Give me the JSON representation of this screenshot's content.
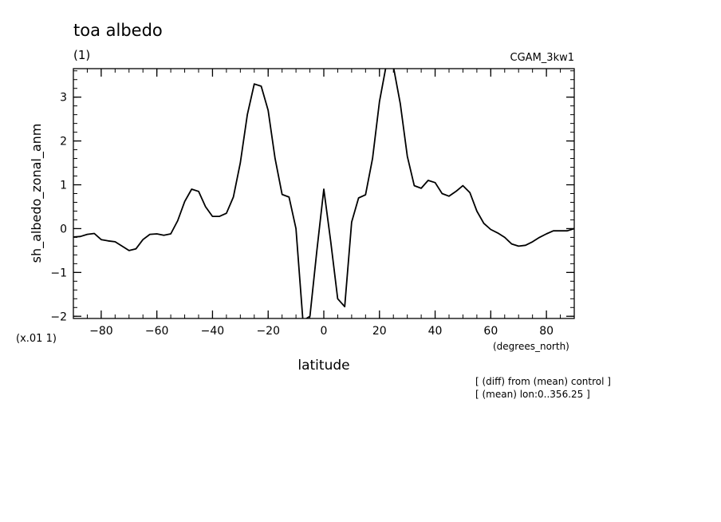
{
  "chart_data": {
    "type": "line",
    "title": "toa albedo",
    "subtitle": "(1)",
    "case_label": "CGAM_3kw1",
    "xlabel": "latitude",
    "xunits": "(degrees_north)",
    "ylabel": "sh_albedo_zonal_anm",
    "yscale_note": "(x.01 1)",
    "notes": [
      "[ (diff) from (mean) control ]",
      "[ (mean) lon:0..356.25 ]"
    ],
    "xlim": [
      -90,
      90
    ],
    "ylim": [
      -2.05,
      3.65
    ],
    "xticks": [
      -80,
      -60,
      -40,
      -20,
      0,
      20,
      40,
      60,
      80
    ],
    "xtick_labels": [
      "−80",
      "−60",
      "−40",
      "−20",
      "0",
      "20",
      "40",
      "60",
      "80"
    ],
    "yticks": [
      -2,
      -1,
      0,
      1,
      2,
      3
    ],
    "ytick_labels": [
      "−2",
      "−1",
      "0",
      "1",
      "2",
      "3"
    ],
    "grid": false,
    "line_color": "#000000",
    "x": [
      -90,
      -87.5,
      -85,
      -82.5,
      -80,
      -77.5,
      -75,
      -72.5,
      -70,
      -67.5,
      -65,
      -62.5,
      -60,
      -57.5,
      -55,
      -52.5,
      -50,
      -47.5,
      -45,
      -42.5,
      -40,
      -37.5,
      -35,
      -32.5,
      -30,
      -27.5,
      -25,
      -22.5,
      -20,
      -17.5,
      -15,
      -12.5,
      -10,
      -7.5,
      -5,
      -2.5,
      0,
      2.5,
      5,
      7.5,
      10,
      12.5,
      15,
      17.5,
      20,
      22.5,
      25,
      27.5,
      30,
      32.5,
      35,
      37.5,
      40,
      42.5,
      45,
      47.5,
      50,
      52.5,
      55,
      57.5,
      60,
      62.5,
      65,
      67.5,
      70,
      72.5,
      75,
      77.5,
      80,
      82.5,
      85,
      87.5,
      90
    ],
    "y": [
      -0.19,
      -0.18,
      -0.13,
      -0.11,
      -0.25,
      -0.28,
      -0.3,
      -0.4,
      -0.5,
      -0.46,
      -0.25,
      -0.13,
      -0.12,
      -0.15,
      -0.12,
      0.18,
      0.62,
      0.9,
      0.85,
      0.5,
      0.28,
      0.28,
      0.35,
      0.72,
      1.5,
      2.6,
      3.3,
      3.25,
      2.7,
      1.6,
      0.78,
      0.72,
      0.0,
      -2.1,
      -2.0,
      -0.5,
      0.9,
      -0.3,
      -1.6,
      -1.78,
      0.15,
      0.7,
      0.77,
      1.6,
      2.9,
      3.75,
      3.7,
      2.85,
      1.65,
      0.98,
      0.92,
      1.1,
      1.05,
      0.8,
      0.74,
      0.85,
      0.98,
      0.82,
      0.4,
      0.12,
      -0.02,
      -0.1,
      -0.2,
      -0.35,
      -0.4,
      -0.38,
      -0.3,
      -0.2,
      -0.12,
      -0.05,
      -0.05,
      -0.05,
      0.0
    ]
  }
}
